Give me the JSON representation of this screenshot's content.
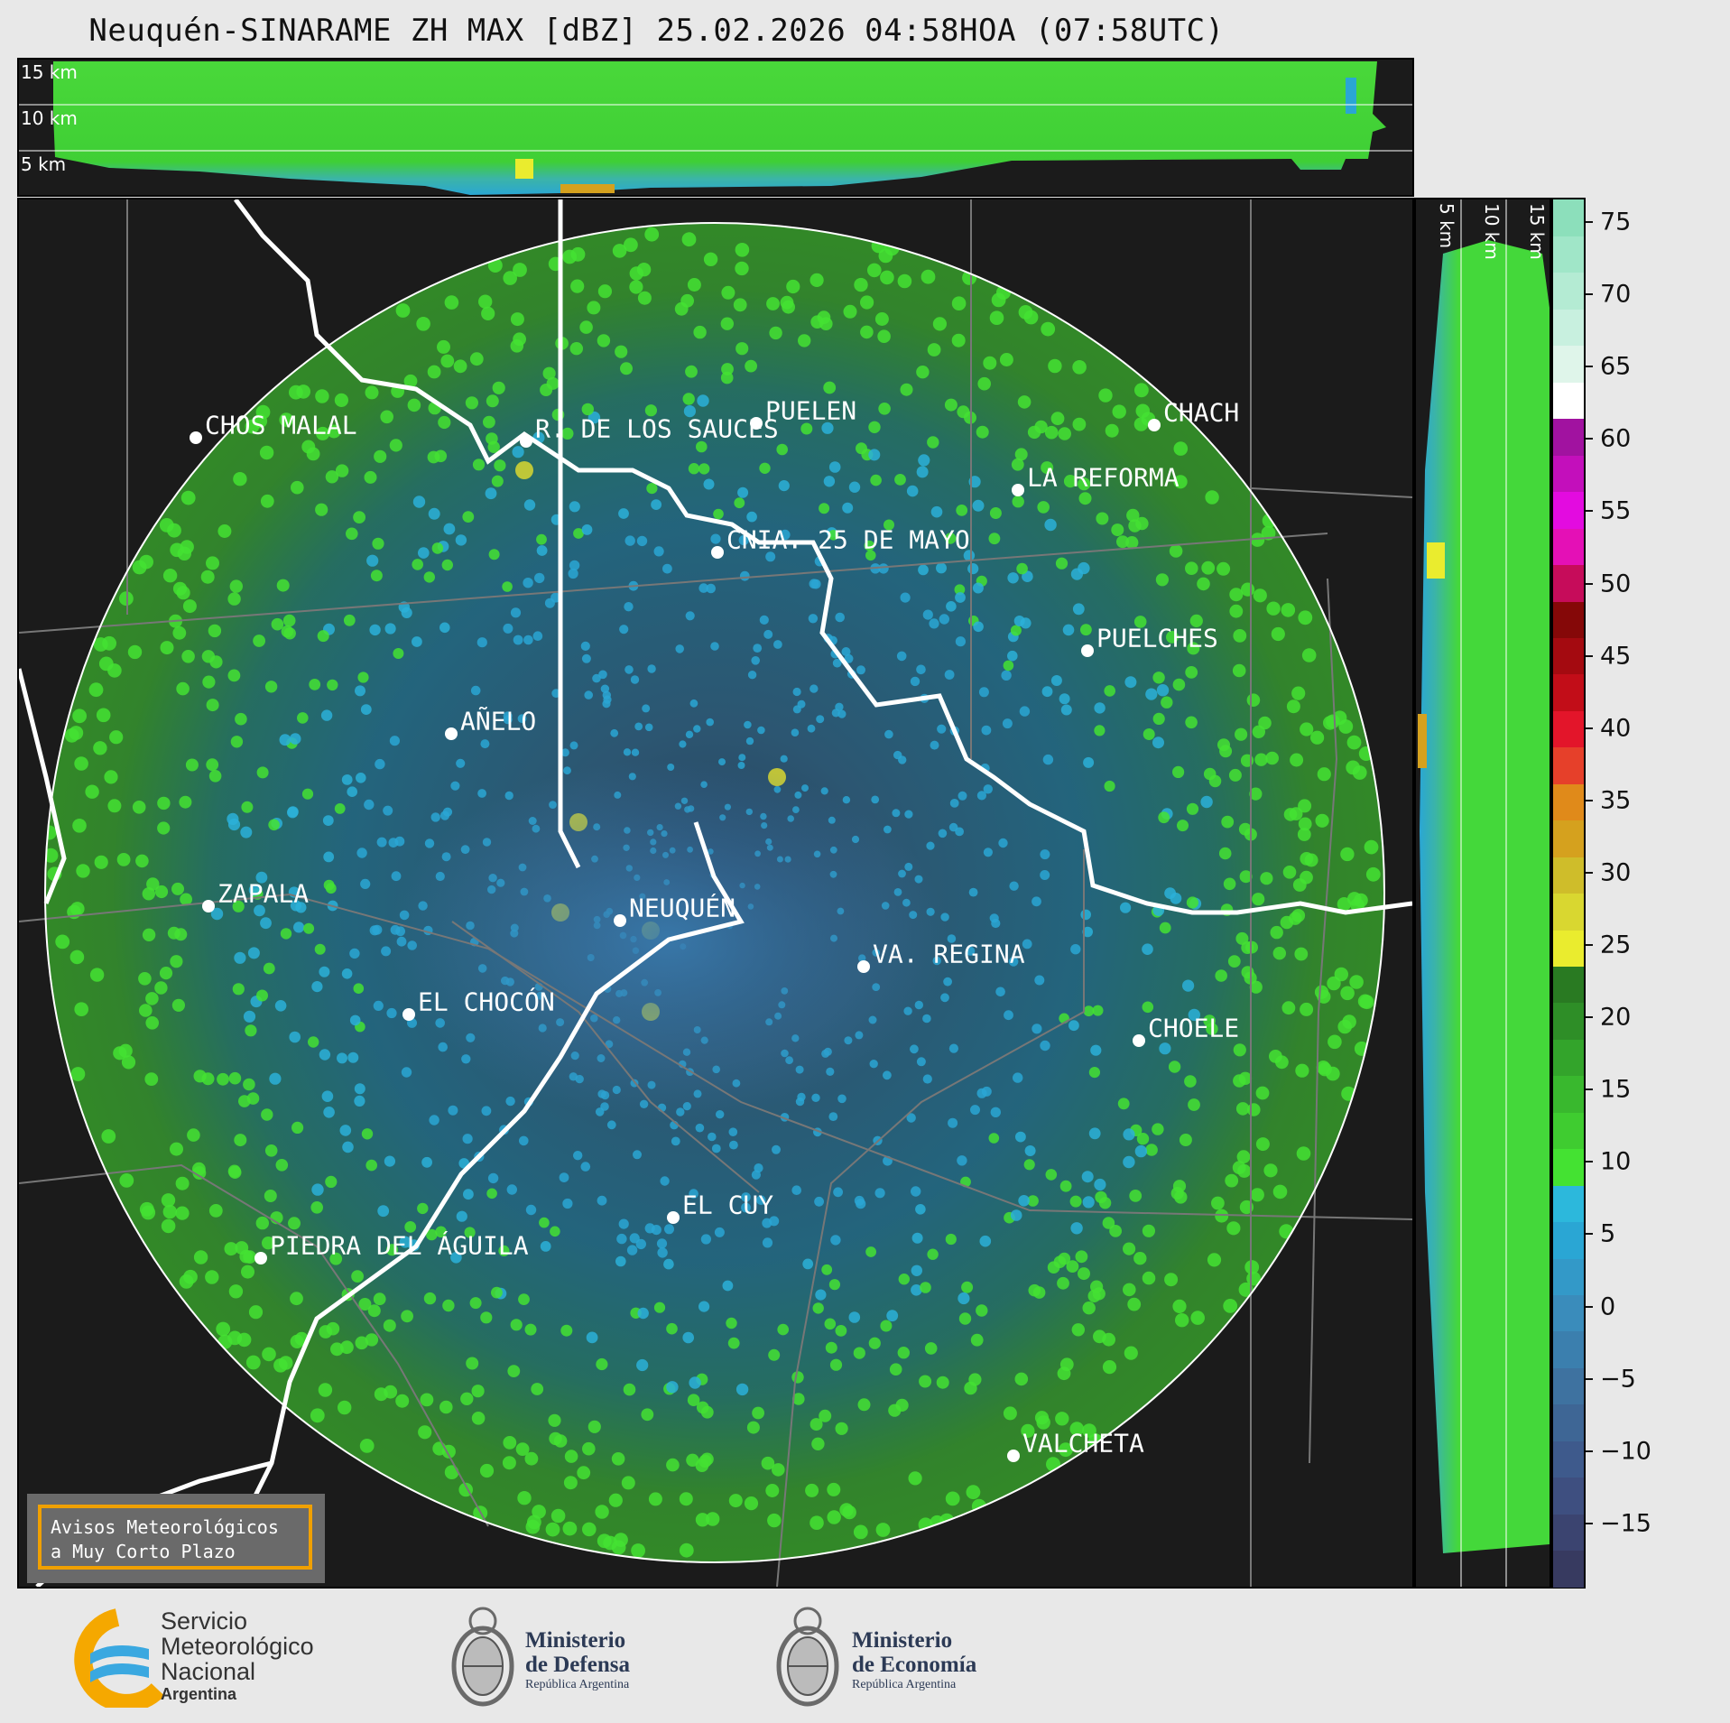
{
  "title": "Neuquén-SINARAME ZH MAX [dBZ] 25.02.2026 04:58HOA (07:58UTC)",
  "top_section": {
    "levels": [
      "15 km",
      "10 km",
      "5 km"
    ]
  },
  "side_section": {
    "levels": [
      "5 km",
      "10 km",
      "15 km"
    ]
  },
  "colorbar": {
    "ticks": [
      "75",
      "70",
      "65",
      "60",
      "55",
      "50",
      "45",
      "40",
      "35",
      "30",
      "25",
      "20",
      "15",
      "10",
      "5",
      "0",
      "−5",
      "−10",
      "−15"
    ],
    "colors": [
      "#373a60",
      "#3b4470",
      "#3e4f80",
      "#3e5a8c",
      "#3e6695",
      "#3e72a0",
      "#3b7fae",
      "#3a8cbb",
      "#3399c8",
      "#2aa6d4",
      "#2cb8dc",
      "#44e232",
      "#3fcc30",
      "#39b82e",
      "#33a42b",
      "#2e8e27",
      "#297a22",
      "#eaec2e",
      "#d9d730",
      "#cfbd2a",
      "#d5a11e",
      "#e08a1a",
      "#e6402a",
      "#e3152a",
      "#c20d18",
      "#a40a10",
      "#850808",
      "#c60c5a",
      "#e410b6",
      "#e30be0",
      "#c30fbb",
      "#a112a0",
      "#ffffff",
      "#dff5ea",
      "#c8f0df",
      "#b4ebd3",
      "#a0e6c8",
      "#8cdfbb"
    ]
  },
  "cities": [
    {
      "name": "CHOS MALAL"
    },
    {
      "name": "R. DE LOS SAUCES"
    },
    {
      "name": "PUELEN"
    },
    {
      "name": "CHACH"
    },
    {
      "name": "LA REFORMA"
    },
    {
      "name": "CNIA. 25 DE MAYO"
    },
    {
      "name": "PUELCHES"
    },
    {
      "name": "AÑELO"
    },
    {
      "name": "ZAPALA"
    },
    {
      "name": "NEUQUÉN"
    },
    {
      "name": "VA. REGINA"
    },
    {
      "name": "EL CHOCÓN"
    },
    {
      "name": "CHOELE"
    },
    {
      "name": "EL CUY"
    },
    {
      "name": "PIEDRA DEL ÁGUILA"
    },
    {
      "name": "VALCHETA"
    }
  ],
  "notice": {
    "line1": "Avisos Meteorológicos",
    "line2": "a Muy Corto Plazo"
  },
  "logos": {
    "smn": {
      "line1": "Servicio",
      "line2": "Meteorológico",
      "line3": "Nacional",
      "line4": "Argentina"
    },
    "defensa": {
      "line1": "Ministerio",
      "line2": "de Defensa",
      "line3": "República Argentina"
    },
    "economia": {
      "line1": "Ministerio",
      "line2": "de Economía",
      "line3": "República Argentina"
    }
  }
}
